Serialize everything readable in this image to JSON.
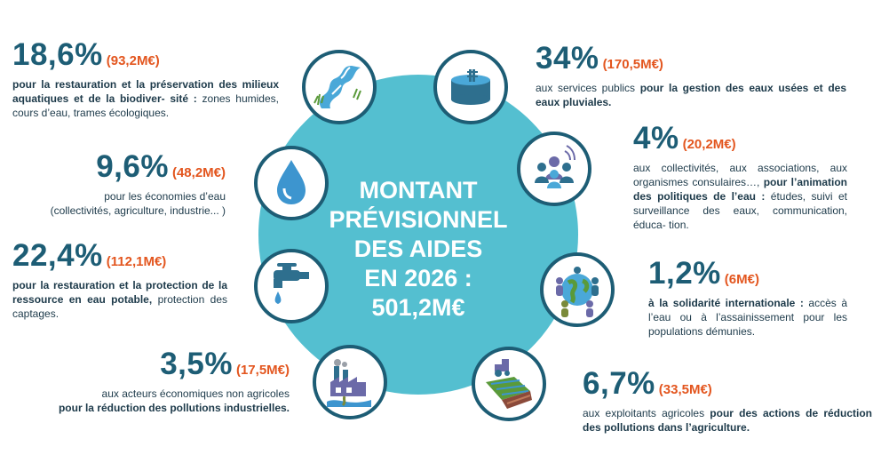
{
  "center": {
    "lines": [
      "MONTANT",
      "PRÉVISIONNEL",
      "DES AIDES",
      "EN 2026 :",
      "501,2M€"
    ]
  },
  "items": [
    {
      "pct": "18,6%",
      "amount": "(93,2M€)",
      "desc_bold": "pour la restauration et la préservation des milieux aquatiques et de la biodiver- sité :",
      "desc_rest": " zones humides, cours d’eau, trames écologiques.",
      "icon": "river-icon"
    },
    {
      "pct": "9,6%",
      "amount": "(48,2M€)",
      "desc_line1": "pour les économies d’eau",
      "desc_line2": "(collectivités, agriculture, industrie... )",
      "icon": "water-drop-icon"
    },
    {
      "pct": "22,4%",
      "amount": "(112,1M€)",
      "desc_bold": "pour la restauration et la protection de la ressource en eau potable,",
      "desc_rest": " protection des captages.",
      "icon": "faucet-icon"
    },
    {
      "pct": "3,5%",
      "amount": "(17,5M€)",
      "desc_line1": "aux acteurs économiques non agricoles",
      "desc_bold": "pour la réduction des pollutions industrielles.",
      "icon": "factory-icon"
    },
    {
      "pct": "34%",
      "amount": "(170,5M€)",
      "desc_rest": "aux services publics ",
      "desc_bold": "pour la gestion des eaux usées et des eaux pluviales.",
      "icon": "water-tank-icon"
    },
    {
      "pct": "4%",
      "amount": "(20,2M€)",
      "desc_rest": "aux collectivités, aux associations, aux organismes consulaires…, ",
      "desc_bold": "pour l’animation des politiques de l’eau :",
      "desc_rest2": " études, suivi et surveillance des eaux, communication, éduca- tion.",
      "icon": "people-broadcast-icon"
    },
    {
      "pct": "1,2%",
      "amount": "(6M€)",
      "desc_bold": "à la solidarité internationale :",
      "desc_rest": " accès à l’eau ou à l’assainissement pour les populations démunies.",
      "icon": "globe-people-icon"
    },
    {
      "pct": "6,7%",
      "amount": "(33,5M€)",
      "desc_rest": "aux exploitants agricoles ",
      "desc_bold": "pour des actions de réduction des pollutions dans l’agriculture.",
      "icon": "tractor-field-icon"
    }
  ]
}
